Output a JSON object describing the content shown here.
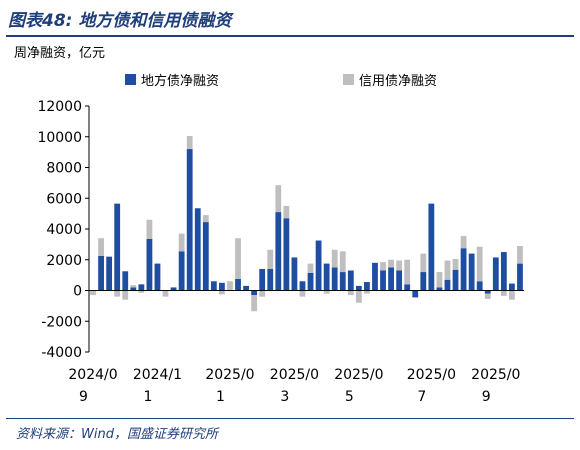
{
  "figure": {
    "title": "图表48: 地方债和信用债融资",
    "source": "资料来源：Wind，国盛证券研究所"
  },
  "colors": {
    "local": "#1f4ea1",
    "credit": "#bfbfbf",
    "heading": "#1f3f7a"
  },
  "chart_data": {
    "type": "bar",
    "stacked": true,
    "unit_label": "周净融资，亿元",
    "ylim": [
      -4000,
      12000
    ],
    "yticks": [
      -4000,
      -2000,
      0,
      2000,
      4000,
      6000,
      8000,
      10000,
      12000
    ],
    "legend_position": "top",
    "x_tick_labels": [
      {
        "line1": "2024/0",
        "line2": "9",
        "index": 0
      },
      {
        "line1": "2024/1",
        "line2": "1",
        "index": 8
      },
      {
        "line1": "2025/0",
        "line2": "1",
        "index": 17
      },
      {
        "line1": "2025/0",
        "line2": "3",
        "index": 25
      },
      {
        "line1": "2025/0",
        "line2": "5",
        "index": 33
      },
      {
        "line1": "2025/0",
        "line2": "7",
        "index": 42
      },
      {
        "line1": "2025/0",
        "line2": "9",
        "index": 50
      }
    ],
    "series": [
      {
        "name": "地方债净融资",
        "values": [
          0,
          2250,
          2200,
          5650,
          1250,
          200,
          400,
          3350,
          1750,
          0,
          200,
          2550,
          9200,
          5350,
          4450,
          600,
          500,
          0,
          750,
          300,
          -300,
          1400,
          1400,
          5100,
          4700,
          2150,
          600,
          1150,
          3250,
          1750,
          1500,
          1200,
          1300,
          300,
          550,
          1800,
          1300,
          1500,
          1300,
          400,
          -450,
          1200,
          5650,
          200,
          700,
          1350,
          2750,
          2400,
          600,
          -200,
          2150,
          2500,
          450,
          1750
        ]
      },
      {
        "name": "信用债净融资",
        "values": [
          -300,
          1150,
          0,
          -400,
          -600,
          150,
          -150,
          1250,
          0,
          -400,
          0,
          1150,
          850,
          0,
          450,
          0,
          -250,
          600,
          2650,
          0,
          -1050,
          -400,
          1250,
          1750,
          800,
          0,
          -400,
          600,
          0,
          -200,
          1150,
          1350,
          -300,
          -800,
          -200,
          0,
          550,
          500,
          650,
          1600,
          0,
          1200,
          0,
          1000,
          1250,
          700,
          800,
          0,
          2250,
          -350,
          0,
          -350,
          -600,
          1150
        ]
      }
    ]
  }
}
